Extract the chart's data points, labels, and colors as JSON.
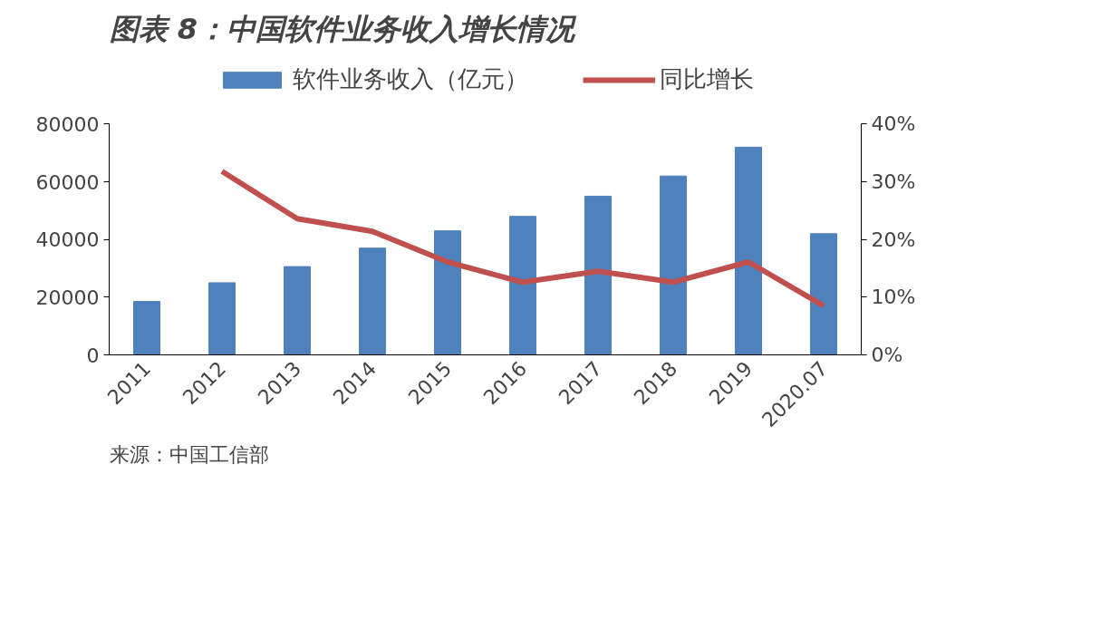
{
  "chart_data": {
    "type": "bar",
    "title": "图表 8：中国软件业务收入增长情况",
    "categories": [
      "2011",
      "2012",
      "2013",
      "2014",
      "2015",
      "2016",
      "2017",
      "2018",
      "2019",
      "2020.07"
    ],
    "series": [
      {
        "name": "软件业务收入（亿元）",
        "color": "#4f81bd",
        "values": [
          18500,
          25000,
          30600,
          37000,
          43000,
          48000,
          55000,
          62000,
          72000,
          42000
        ]
      },
      {
        "name": "同比增长",
        "type": "line",
        "axis": "y2",
        "color": "#c0504d",
        "values": [
          null,
          31.8,
          23.6,
          21.4,
          16.1,
          12.6,
          14.5,
          12.6,
          16.1,
          8.5
        ]
      }
    ],
    "ylim": [
      0,
      80000
    ],
    "yticks": [
      0,
      20000,
      40000,
      60000,
      80000
    ],
    "y2lim": [
      0,
      40
    ],
    "y2ticks": [
      {
        "value": 0,
        "label": "0%"
      },
      {
        "value": 10,
        "label": "10%"
      },
      {
        "value": 20,
        "label": "20%"
      },
      {
        "value": 30,
        "label": "30%"
      },
      {
        "value": 40,
        "label": "40%"
      }
    ],
    "grid": false,
    "legend": "top",
    "marker": "none",
    "line_style": "solid",
    "annotations": [
      "来源：中国工信部"
    ]
  }
}
